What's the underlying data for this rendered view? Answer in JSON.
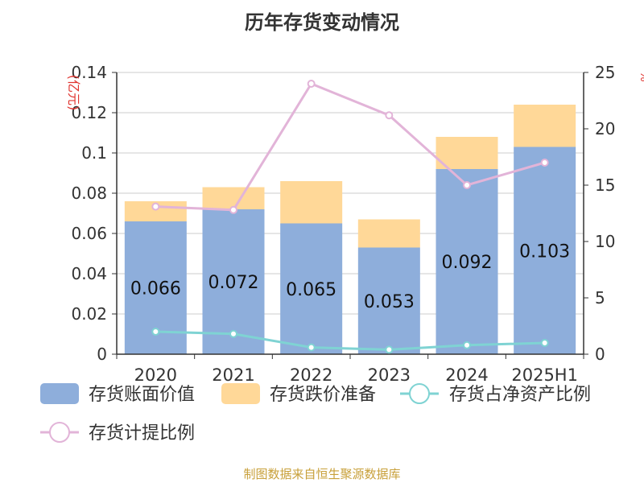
{
  "title": "历年存货变动情况",
  "source": "制图数据来自恒生聚源数据库",
  "colors": {
    "book_value": "#8eaedb",
    "impairment": "#ffd898",
    "ratio_net_assets": "#7fd3d3",
    "provision_ratio": "#e2b4d8",
    "unit_label": "#e0342f",
    "grid": "#cccccc",
    "axis": "#333333"
  },
  "chart_data": {
    "type": "bar",
    "title": "历年存货变动情况",
    "y_unit_label": "(亿元)",
    "right_axis_label": "%",
    "categories": [
      "2020",
      "2021",
      "2022",
      "2023",
      "2024",
      "2025H1"
    ],
    "left_axis": {
      "min": 0,
      "max": 0.14,
      "ticks": [
        "0",
        "0.02",
        "0.04",
        "0.06",
        "0.08",
        "0.1",
        "0.12",
        "0.14"
      ]
    },
    "right_axis": {
      "min": 0,
      "max": 25,
      "ticks": [
        "0",
        "5",
        "10",
        "15",
        "20",
        "25"
      ]
    },
    "grid": true,
    "legend_position": "bottom",
    "series": [
      {
        "name": "存货账面价值",
        "kind": "bar",
        "axis": "left",
        "values": [
          0.066,
          0.072,
          0.065,
          0.053,
          0.092,
          0.103
        ],
        "labels": [
          "0.066",
          "0.072",
          "0.065",
          "0.053",
          "0.092",
          "0.103"
        ]
      },
      {
        "name": "存货跌价准备",
        "kind": "bar",
        "axis": "left",
        "stacked": true,
        "values": [
          0.01,
          0.011,
          0.021,
          0.014,
          0.016,
          0.021
        ]
      },
      {
        "name": "存货占净资产比例",
        "kind": "line",
        "axis": "right",
        "values": [
          2.0,
          1.8,
          0.6,
          0.4,
          0.8,
          1.0
        ]
      },
      {
        "name": "存货计提比例",
        "kind": "line",
        "axis": "right",
        "values": [
          13.1,
          12.8,
          24.0,
          21.2,
          15.0,
          17.0
        ]
      }
    ]
  }
}
